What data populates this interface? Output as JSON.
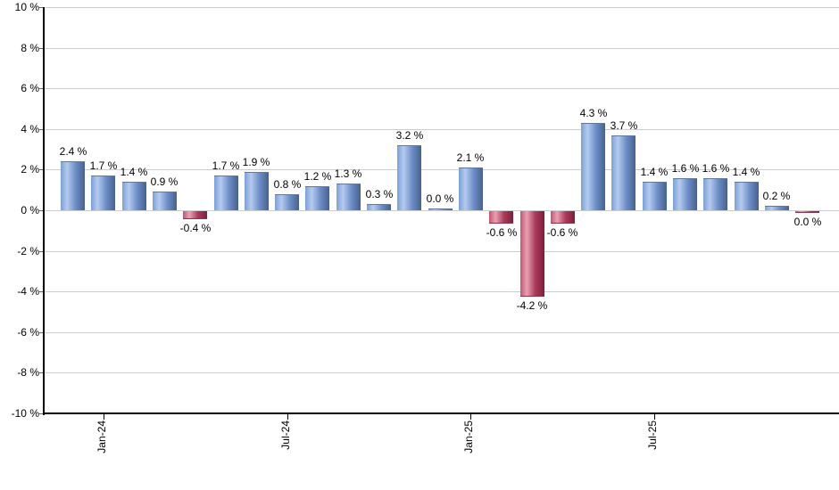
{
  "chart_data": {
    "type": "bar",
    "title": "",
    "unit": "%",
    "values": [
      2.4,
      1.7,
      1.4,
      0.9,
      -0.4,
      1.7,
      1.9,
      0.8,
      1.2,
      1.3,
      0.3,
      3.2,
      0.0,
      2.1,
      -0.6,
      -4.2,
      -0.6,
      4.3,
      3.7,
      1.4,
      1.6,
      1.6,
      1.4,
      0.2,
      0.0
    ],
    "bar_labels": [
      "2.4 %",
      "1.7 %",
      "1.4 %",
      "0.9 %",
      "-0.4 %",
      "1.7 %",
      "1.9 %",
      "0.8 %",
      "1.2 %",
      "1.3 %",
      "0.3 %",
      "3.2 %",
      "0.0 %",
      "2.1 %",
      "-0.6 %",
      "-4.2 %",
      "-0.6 %",
      "4.3 %",
      "3.7 %",
      "1.4 %",
      "1.6 %",
      "1.6 %",
      "1.4 %",
      "0.2 %",
      "0.0 %"
    ],
    "bar_directions": [
      "pos",
      "pos",
      "pos",
      "pos",
      "neg",
      "pos",
      "pos",
      "pos",
      "pos",
      "pos",
      "pos",
      "pos",
      "pos",
      "pos",
      "neg",
      "neg",
      "neg",
      "pos",
      "pos",
      "pos",
      "pos",
      "pos",
      "pos",
      "pos",
      "neg"
    ],
    "x_axis": {
      "tick_labels": [
        "Jan-24",
        "Jul-24",
        "Jan-25",
        "Jul-25"
      ],
      "tick_bar_indices": [
        1,
        7,
        13,
        19
      ]
    },
    "y_axis": {
      "min": -10,
      "max": 10,
      "step": 2,
      "tick_labels": [
        "10 %",
        "8 %",
        "6 %",
        "4 %",
        "2 %",
        "0 %",
        "-2 %",
        "-4 %",
        "-6 %",
        "-8 %",
        "-10 %"
      ]
    },
    "grid": true,
    "legend": false,
    "colors": {
      "positive_bar_left": "#7aa0d8",
      "positive_bar_highlight": "#b4cbee",
      "positive_bar_mid": "#6c8ec6",
      "positive_bar_right": "#46618f",
      "positive_bar_cap": "#62779f",
      "negative_bar_left": "#c25672",
      "negative_bar_highlight": "#e9a0b0",
      "negative_bar_mid": "#aa3a5c",
      "negative_bar_right": "#7c1f39",
      "negative_bar_cap": "#93304a",
      "gridline": "#cccccc",
      "axis": "#000000",
      "label_text": "#000000",
      "background": "#ffffff"
    }
  }
}
